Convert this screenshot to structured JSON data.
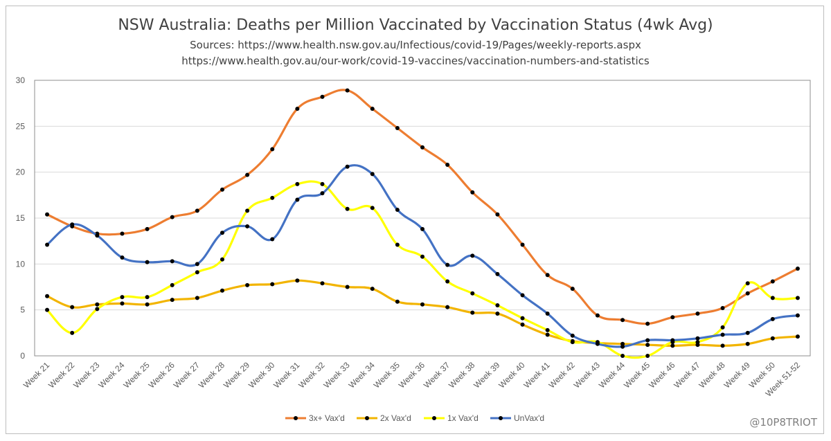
{
  "chart_data": {
    "type": "line",
    "title": "NSW Australia: Deaths per Million Vaccinated by Vaccination Status (4wk Avg)",
    "subtitle_lines": [
      "Sources: https://www.health.nsw.gov.au/Infectious/covid-19/Pages/weekly-reports.aspx",
      "https://www.health.gov.au/our-work/covid-19-vaccines/vaccination-numbers-and-statistics"
    ],
    "xlabel": "",
    "ylabel": "",
    "ylim": [
      0,
      30
    ],
    "yticks": [
      0,
      5,
      10,
      15,
      20,
      25,
      30
    ],
    "grid": "horizontal",
    "legend_position": "bottom",
    "categories": [
      "Week 21",
      "Week 22",
      "Week 23",
      "Week 24",
      "Week 25",
      "Week 26",
      "Week 27",
      "Week 28",
      "Week 29",
      "Week 30",
      "Week 31",
      "Week 32",
      "Week 33",
      "Week 34",
      "Week 35",
      "Week 36",
      "Week 37",
      "Week 38",
      "Week 39",
      "Week 40",
      "Week 41",
      "Week 42",
      "Week 43",
      "Week 44",
      "Week 45",
      "Week 46",
      "Week 47",
      "Week 48",
      "Week 49",
      "Week 50",
      "Week 51-52"
    ],
    "series": [
      {
        "name": "3x+ Vax'd",
        "color": "#ED7D31",
        "values": [
          15.4,
          14.1,
          13.3,
          13.3,
          13.8,
          15.1,
          15.8,
          18.1,
          19.7,
          22.5,
          26.9,
          28.2,
          28.9,
          26.9,
          24.8,
          22.7,
          20.8,
          17.8,
          15.4,
          12.1,
          8.8,
          7.3,
          4.4,
          3.9,
          3.5,
          4.2,
          4.6,
          5.2,
          6.8,
          8.1,
          9.5
        ]
      },
      {
        "name": "2x Vax'd",
        "color": "#F2B400",
        "values": [
          6.5,
          5.3,
          5.6,
          5.7,
          5.6,
          6.1,
          6.3,
          7.1,
          7.7,
          7.8,
          8.2,
          7.9,
          7.5,
          7.3,
          5.9,
          5.6,
          5.3,
          4.7,
          4.6,
          3.4,
          2.3,
          1.6,
          1.4,
          1.3,
          1.2,
          1.1,
          1.2,
          1.1,
          1.3,
          1.9,
          2.1
        ]
      },
      {
        "name": "1x Vax'd",
        "color": "#FFFF00",
        "values": [
          5.0,
          2.5,
          5.1,
          6.4,
          6.4,
          7.7,
          9.1,
          10.5,
          15.8,
          17.2,
          18.7,
          18.7,
          16.0,
          16.1,
          12.1,
          10.8,
          8.1,
          6.8,
          5.5,
          4.1,
          2.8,
          1.5,
          1.5,
          0.0,
          0.0,
          1.5,
          1.5,
          3.1,
          7.9,
          6.3,
          6.3
        ]
      },
      {
        "name": "UnVax'd",
        "color": "#4472C4",
        "values": [
          12.1,
          14.3,
          13.1,
          10.7,
          10.2,
          10.3,
          10.0,
          13.4,
          14.1,
          12.7,
          17.0,
          17.7,
          20.6,
          19.8,
          15.9,
          13.8,
          9.9,
          10.9,
          8.9,
          6.6,
          4.6,
          2.2,
          1.3,
          1.0,
          1.7,
          1.7,
          1.9,
          2.3,
          2.5,
          4.0,
          4.4
        ]
      }
    ]
  },
  "watermark": "@10P8TRIOT"
}
